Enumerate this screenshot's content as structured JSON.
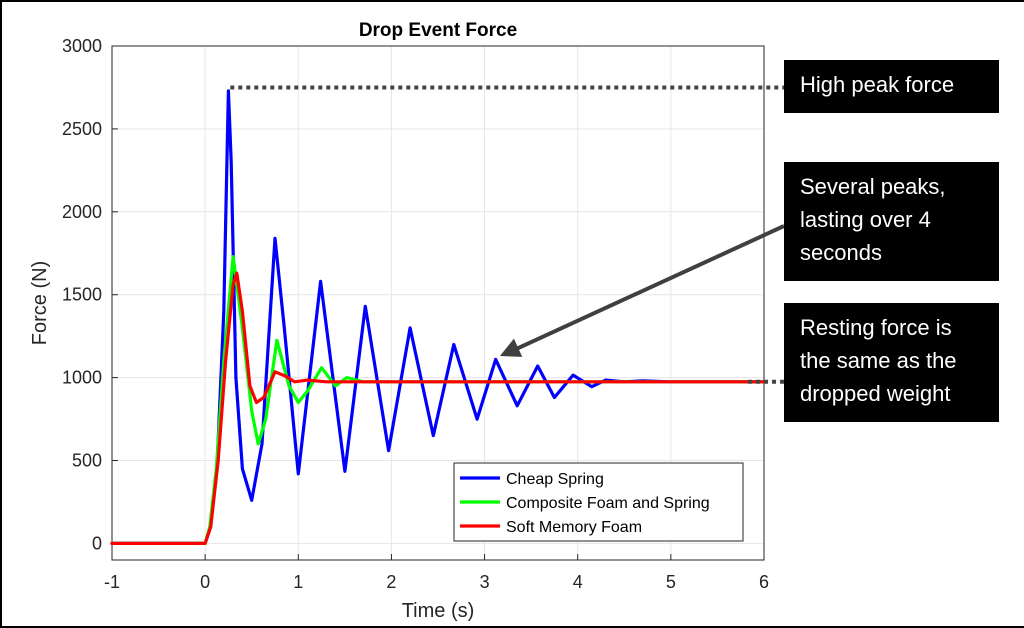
{
  "chart_data": {
    "type": "line",
    "title": "Drop Event Force",
    "xlabel": "Time (s)",
    "ylabel": "Force (N)",
    "xlim": [
      -1,
      6
    ],
    "ylim": [
      -100,
      3000
    ],
    "xticks": [
      -1,
      0,
      1,
      2,
      3,
      4,
      5,
      6
    ],
    "yticks": [
      0,
      500,
      1000,
      1500,
      2000,
      2500,
      3000
    ],
    "grid": true,
    "legend_position": "bottom-right",
    "series": [
      {
        "name": "Cheap Spring",
        "color": "#0000ff",
        "x": [
          -1,
          0,
          0.06,
          0.13,
          0.2,
          0.25,
          0.28,
          0.33,
          0.4,
          0.5,
          0.61,
          0.75,
          0.85,
          1.0,
          1.24,
          1.5,
          1.72,
          1.97,
          2.2,
          2.45,
          2.67,
          2.92,
          3.12,
          3.35,
          3.57,
          3.75,
          3.95,
          4.15,
          4.3,
          4.5,
          4.7,
          5.0,
          6.0
        ],
        "y": [
          0,
          0,
          100,
          500,
          1400,
          2730,
          2300,
          1000,
          450,
          260,
          600,
          1840,
          1300,
          420,
          1580,
          435,
          1430,
          560,
          1300,
          650,
          1200,
          750,
          1110,
          830,
          1070,
          880,
          1015,
          945,
          985,
          975,
          980,
          975,
          975
        ]
      },
      {
        "name": "Composite Foam and Spring",
        "color": "#00ff00",
        "x": [
          -1,
          0,
          0.05,
          0.12,
          0.2,
          0.3,
          0.4,
          0.5,
          0.57,
          0.65,
          0.77,
          0.9,
          1.0,
          1.1,
          1.25,
          1.4,
          1.52,
          1.7,
          2.0,
          6.0
        ],
        "y": [
          0,
          0,
          100,
          450,
          1100,
          1730,
          1300,
          800,
          600,
          750,
          1225,
          950,
          850,
          920,
          1060,
          950,
          1000,
          975,
          975,
          975
        ]
      },
      {
        "name": "Soft Memory Foam",
        "color": "#ff0000",
        "x": [
          -1,
          0,
          0.06,
          0.14,
          0.22,
          0.3,
          0.34,
          0.4,
          0.48,
          0.55,
          0.63,
          0.75,
          0.86,
          0.96,
          1.1,
          1.3,
          2.0,
          6.0
        ],
        "y": [
          0,
          0,
          100,
          500,
          1100,
          1560,
          1630,
          1400,
          950,
          850,
          880,
          1035,
          1010,
          975,
          985,
          975,
          975,
          975
        ]
      }
    ],
    "legend": [
      "Cheap Spring",
      "Composite Foam and Spring",
      "Soft Memory Foam"
    ],
    "colors": {
      "annotation_line": "#444444",
      "arrow": "#404040"
    }
  },
  "callouts": {
    "high_peak": "High peak force",
    "several_peaks": [
      "Several peaks,",
      "lasting over 4",
      "seconds"
    ],
    "resting": [
      "Resting force is",
      "the same as the",
      "dropped weight"
    ]
  }
}
